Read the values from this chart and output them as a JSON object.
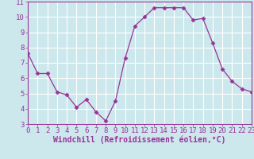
{
  "x": [
    0,
    1,
    2,
    3,
    4,
    5,
    6,
    7,
    8,
    9,
    10,
    11,
    12,
    13,
    14,
    15,
    16,
    17,
    18,
    19,
    20,
    21,
    22,
    23
  ],
  "y": [
    7.6,
    6.3,
    6.3,
    5.1,
    4.9,
    4.1,
    4.6,
    3.8,
    3.2,
    4.5,
    7.3,
    9.4,
    10.0,
    10.6,
    10.6,
    10.6,
    10.6,
    9.8,
    9.9,
    8.3,
    6.6,
    5.8,
    5.3,
    5.1
  ],
  "line_color": "#993399",
  "marker": "D",
  "marker_size": 2.5,
  "bg_color": "#cce8ec",
  "grid_color": "#ffffff",
  "xlabel": "Windchill (Refroidissement éolien,°C)",
  "xlabel_fontsize": 7,
  "tick_color": "#993399",
  "tick_fontsize": 6.5,
  "ylim": [
    3,
    11
  ],
  "xlim": [
    0,
    23
  ],
  "yticks": [
    3,
    4,
    5,
    6,
    7,
    8,
    9,
    10,
    11
  ],
  "xticks": [
    0,
    1,
    2,
    3,
    4,
    5,
    6,
    7,
    8,
    9,
    10,
    11,
    12,
    13,
    14,
    15,
    16,
    17,
    18,
    19,
    20,
    21,
    22,
    23
  ]
}
